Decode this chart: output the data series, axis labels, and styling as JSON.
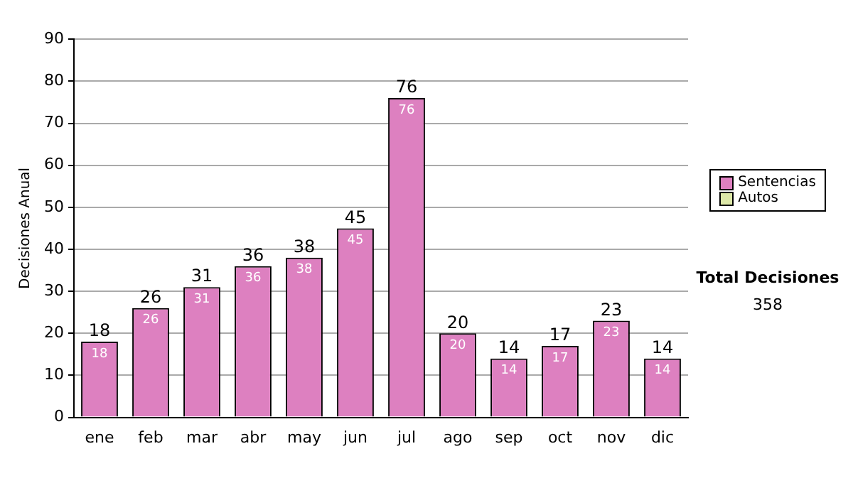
{
  "chart_data": {
    "type": "bar",
    "ylabel": "Decisiones Anual",
    "categories": [
      "ene",
      "feb",
      "mar",
      "abr",
      "may",
      "jun",
      "jul",
      "ago",
      "sep",
      "oct",
      "nov",
      "dic"
    ],
    "series": [
      {
        "name": "Sentencias",
        "color": "#dd80c0",
        "values": [
          18,
          26,
          31,
          36,
          38,
          45,
          76,
          20,
          14,
          17,
          23,
          14
        ]
      },
      {
        "name": "Autos",
        "color": "#dde8a8",
        "values": [
          null,
          null,
          null,
          null,
          null,
          null,
          null,
          null,
          null,
          null,
          null,
          null
        ]
      }
    ],
    "stacked": true,
    "totals": [
      "18",
      "26",
      "31",
      "36",
      "38",
      "45",
      "76",
      "20",
      "14",
      "17",
      "23",
      "14"
    ],
    "ylim": [
      0,
      90
    ],
    "yticks": [
      0,
      10,
      20,
      30,
      40,
      50,
      60,
      70,
      80,
      90
    ],
    "grid": "y",
    "legend": "right",
    "data_labels": true,
    "annotations": [
      "Total Decisiones",
      "358"
    ]
  }
}
